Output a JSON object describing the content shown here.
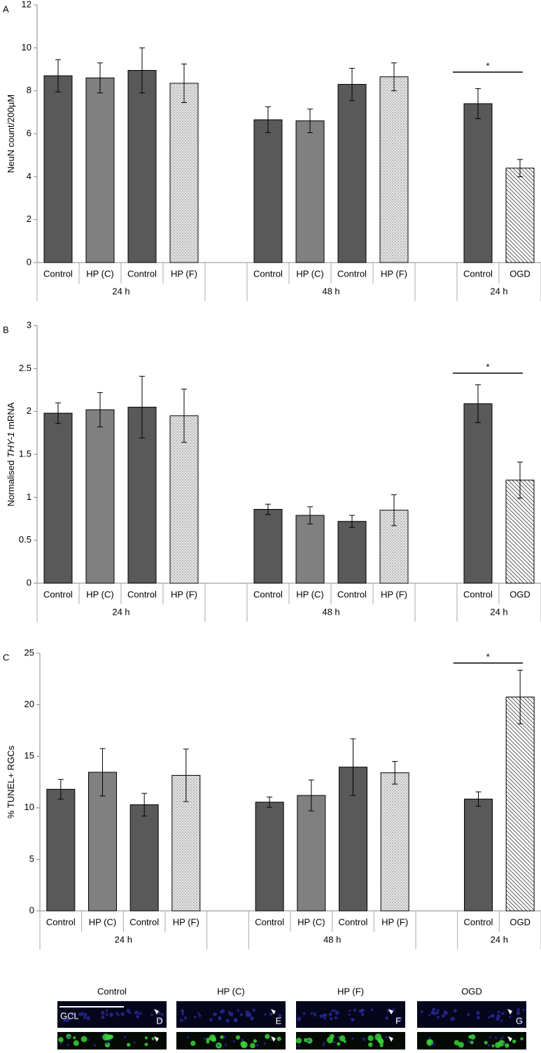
{
  "chart_data": [
    {
      "type": "bar",
      "panel": "A",
      "ylabel": [
        "NeuN count/200µM"
      ],
      "ylabel_italic": [
        false
      ],
      "categories": [
        "Control",
        "HP (C)",
        "Control",
        "HP (F)",
        null,
        "Control",
        "HP (C)",
        "Control",
        "HP (F)",
        null,
        "Control",
        "OGD"
      ],
      "groups": [
        "24 h",
        "48 h",
        "24 h"
      ],
      "values": [
        8.7,
        8.6,
        8.95,
        8.35,
        null,
        6.65,
        6.6,
        8.3,
        8.65,
        null,
        7.4,
        4.4
      ],
      "errors": [
        0.75,
        0.7,
        1.05,
        0.9,
        null,
        0.6,
        0.55,
        0.75,
        0.65,
        null,
        0.7,
        0.4
      ],
      "bar_colors": [
        "#595959",
        "#808080",
        "#595959",
        "#d9d9d9",
        null,
        "#595959",
        "#808080",
        "#595959",
        "#d9d9d9",
        null,
        "#595959",
        "#ffffff"
      ],
      "bar_patterns": [
        "solid",
        "solid",
        "solid",
        "dots",
        null,
        "solid",
        "solid",
        "solid",
        "dots",
        null,
        "solid",
        "hatch"
      ],
      "ylim": [
        0,
        12
      ],
      "yticks": [
        0,
        2,
        4,
        6,
        8,
        10,
        12
      ],
      "significance": "*"
    },
    {
      "type": "bar",
      "panel": "B",
      "ylabel": [
        "Normalised",
        "THY-1",
        "mRNA"
      ],
      "ylabel_italic": [
        false,
        true,
        false
      ],
      "categories": [
        "Control",
        "HP (C)",
        "Control",
        "HP (F)",
        null,
        "Control",
        "HP (C)",
        "Control",
        "HP (F)",
        null,
        "Control",
        "OGD"
      ],
      "groups": [
        "24 h",
        "48 h",
        "24 h"
      ],
      "values": [
        1.98,
        2.02,
        2.05,
        1.95,
        null,
        0.86,
        0.79,
        0.72,
        0.85,
        null,
        2.09,
        1.2
      ],
      "errors": [
        0.12,
        0.2,
        0.36,
        0.31,
        null,
        0.06,
        0.1,
        0.07,
        0.18,
        null,
        0.22,
        0.21
      ],
      "bar_colors": [
        "#595959",
        "#808080",
        "#595959",
        "#d9d9d9",
        null,
        "#595959",
        "#808080",
        "#595959",
        "#d9d9d9",
        null,
        "#595959",
        "#ffffff"
      ],
      "bar_patterns": [
        "solid",
        "solid",
        "solid",
        "dots",
        null,
        "solid",
        "solid",
        "solid",
        "dots",
        null,
        "solid",
        "hatch"
      ],
      "ylim": [
        0,
        3
      ],
      "yticks": [
        0,
        0.5,
        1,
        1.5,
        2,
        2.5,
        3
      ],
      "significance": "*"
    },
    {
      "type": "bar",
      "panel": "C",
      "ylabel": [
        "% TUNEL+ RGCs"
      ],
      "ylabel_italic": [
        false
      ],
      "categories": [
        "Control",
        "HP (C)",
        "Control",
        "HP (F)",
        null,
        "Control",
        "HP (C)",
        "Control",
        "HP (F)",
        null,
        "Control",
        "OGD"
      ],
      "groups": [
        "24 h",
        "48 h",
        "24 h"
      ],
      "values": [
        11.8,
        13.45,
        10.3,
        13.15,
        null,
        10.55,
        11.2,
        13.95,
        13.4,
        null,
        10.85,
        20.75
      ],
      "errors": [
        0.95,
        2.3,
        1.1,
        2.55,
        null,
        0.5,
        1.5,
        2.75,
        1.1,
        null,
        0.7,
        2.6
      ],
      "bar_colors": [
        "#595959",
        "#808080",
        "#595959",
        "#d9d9d9",
        null,
        "#595959",
        "#808080",
        "#595959",
        "#d9d9d9",
        null,
        "#595959",
        "#ffffff"
      ],
      "bar_patterns": [
        "solid",
        "solid",
        "solid",
        "dots",
        null,
        "solid",
        "solid",
        "solid",
        "dots",
        null,
        "solid",
        "hatch"
      ],
      "ylim": [
        0,
        25
      ],
      "yticks": [
        0,
        5,
        10,
        15,
        20,
        25
      ],
      "significance": "*"
    }
  ],
  "micrographs": {
    "titles": [
      "Control",
      "HP (C)",
      "HP (F)",
      "OGD"
    ],
    "region": "GCL",
    "panel_letters": [
      "D",
      "E",
      "F",
      "G"
    ]
  }
}
